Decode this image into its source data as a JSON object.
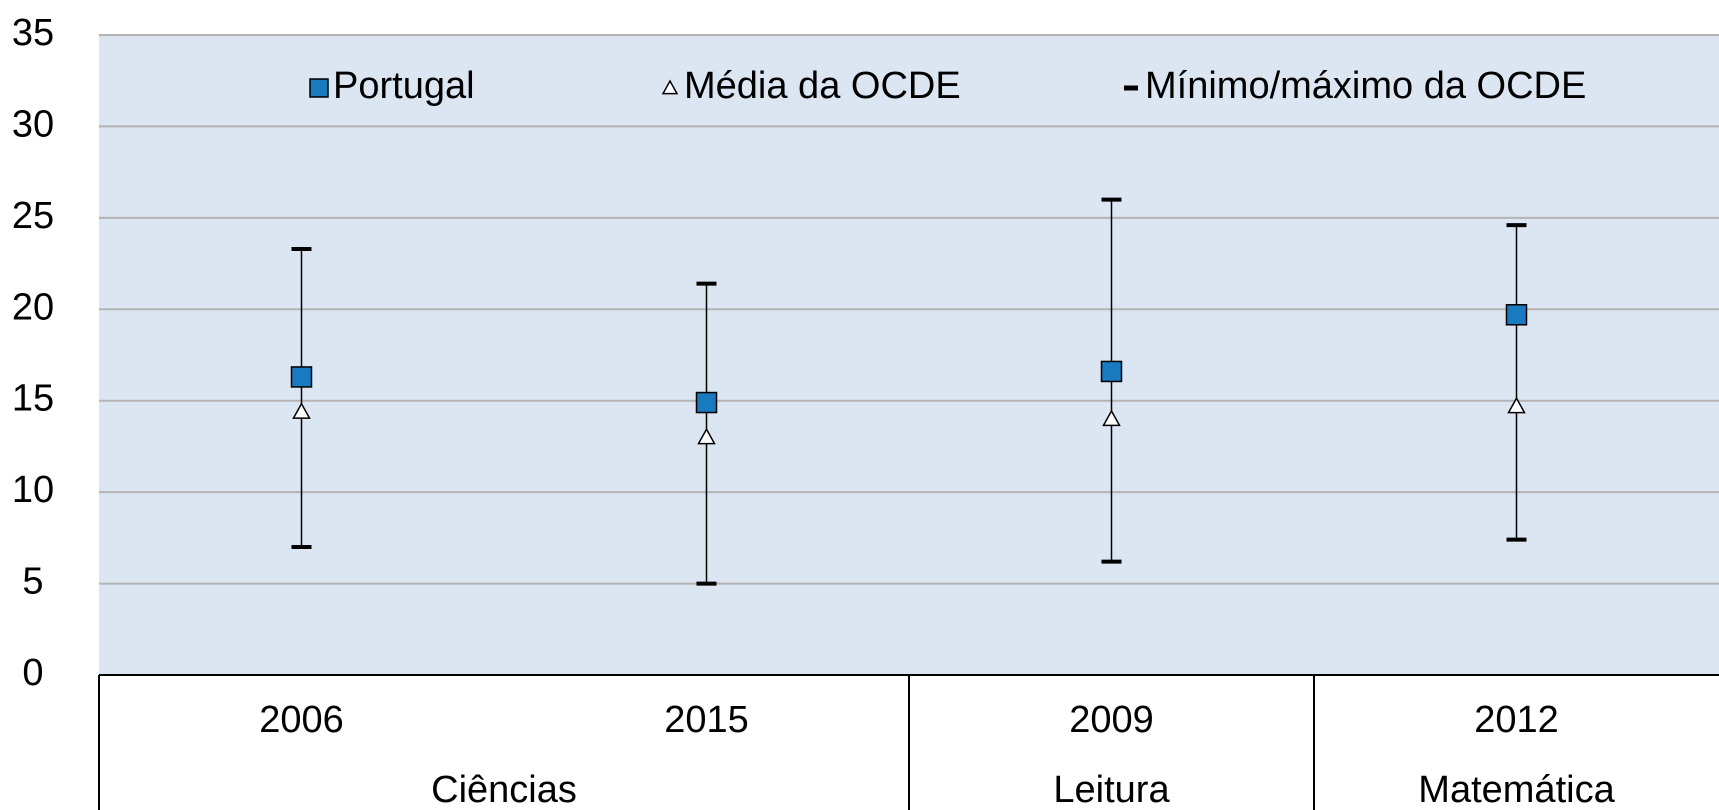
{
  "chart_data": {
    "type": "range",
    "groups": [
      {
        "name": "Ciências",
        "categories": [
          "2006",
          "2015"
        ]
      },
      {
        "name": "Leitura",
        "categories": [
          "2009"
        ]
      },
      {
        "name": "Matemática",
        "categories": [
          "2012"
        ]
      }
    ],
    "series": [
      {
        "name": "Portugal",
        "color": "#1a7abf",
        "marker": "square",
        "values": [
          16.3,
          14.9,
          16.6,
          19.7
        ]
      },
      {
        "name": "Média da OCDE",
        "color": "#ffffff",
        "marker": "triangle",
        "values": [
          14.4,
          13.0,
          14.0,
          14.7
        ]
      },
      {
        "name": "Mínimo/máximo da OCDE",
        "color": "#000000",
        "marker": "range",
        "low": [
          7.0,
          5.0,
          6.2,
          7.4
        ],
        "high": [
          23.3,
          21.4,
          26.0,
          24.6
        ]
      }
    ],
    "ylim": [
      0,
      35
    ],
    "yticks": [
      0,
      5,
      10,
      15,
      20,
      25,
      30,
      35
    ],
    "grid": true
  }
}
